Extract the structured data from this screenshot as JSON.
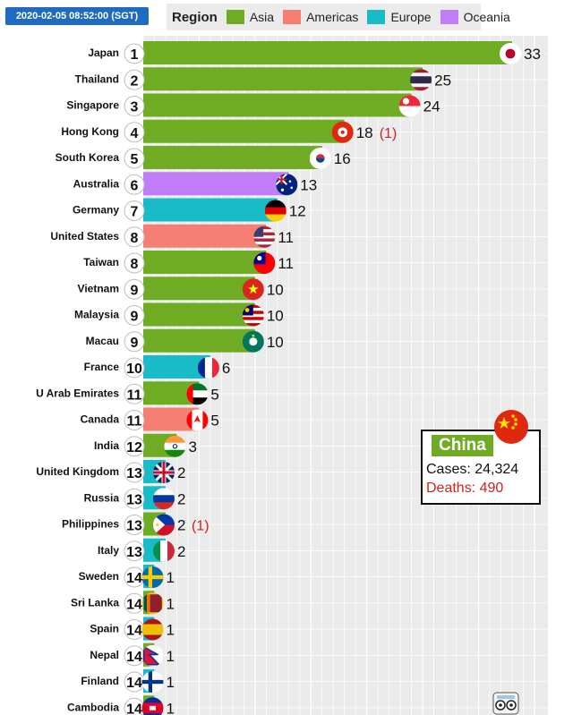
{
  "timestamp": "2020-02-05 08:52:00 (SGT)",
  "legend": {
    "title": "Region",
    "items": [
      {
        "label": "Asia",
        "color": "#6fac24"
      },
      {
        "label": "Americas",
        "color": "#f67f74"
      },
      {
        "label": "Europe",
        "color": "#18bcc6"
      },
      {
        "label": "Oceania",
        "color": "#c17cf7"
      }
    ]
  },
  "china": {
    "name": "China",
    "cases_text": "Cases: 24,324",
    "deaths_text": "Deaths: 490",
    "flag": "flag-china-icon"
  },
  "chart_data": {
    "type": "bar",
    "orientation": "horizontal",
    "xlim": [
      0,
      35
    ],
    "grid": true,
    "legend_position": "top",
    "categories": [
      "Japan",
      "Thailand",
      "Singapore",
      "Hong Kong",
      "South Korea",
      "Australia",
      "Germany",
      "United States",
      "Taiwan",
      "Vietnam",
      "Malaysia",
      "Macau",
      "France",
      "U Arab Emirates",
      "Canada",
      "India",
      "United Kingdom",
      "Russia",
      "Philippines",
      "Italy",
      "Sweden",
      "Sri Lanka",
      "Spain",
      "Nepal",
      "Finland",
      "Cambodia"
    ],
    "values": [
      33,
      25,
      24,
      18,
      16,
      13,
      12,
      11,
      11,
      10,
      10,
      10,
      6,
      5,
      5,
      3,
      2,
      2,
      2,
      2,
      1,
      1,
      1,
      1,
      1,
      1
    ],
    "ranks": [
      1,
      2,
      3,
      4,
      5,
      6,
      7,
      8,
      8,
      9,
      9,
      9,
      10,
      11,
      11,
      12,
      13,
      13,
      13,
      13,
      14,
      14,
      14,
      14,
      14,
      14
    ],
    "regions": [
      "Asia",
      "Asia",
      "Asia",
      "Asia",
      "Asia",
      "Oceania",
      "Europe",
      "Americas",
      "Asia",
      "Asia",
      "Asia",
      "Asia",
      "Europe",
      "Asia",
      "Americas",
      "Asia",
      "Europe",
      "Europe",
      "Asia",
      "Europe",
      "Europe",
      "Asia",
      "Europe",
      "Asia",
      "Europe",
      "Asia"
    ],
    "deaths_labels": [
      "",
      "",
      "",
      "(1)",
      "",
      "",
      "",
      "",
      "",
      "",
      "",
      "",
      "",
      "",
      "",
      "",
      "",
      "",
      "(1)",
      "",
      "",
      "",
      "",
      "",
      "",
      ""
    ],
    "flags": [
      "flag-japan-icon",
      "flag-thailand-icon",
      "flag-singapore-icon",
      "flag-hong-kong-icon",
      "flag-south-korea-icon",
      "flag-australia-icon",
      "flag-germany-icon",
      "flag-united-states-icon",
      "flag-taiwan-icon",
      "flag-vietnam-icon",
      "flag-malaysia-icon",
      "flag-macau-icon",
      "flag-france-icon",
      "flag-uae-icon",
      "flag-canada-icon",
      "flag-india-icon",
      "flag-united-kingdom-icon",
      "flag-russia-icon",
      "flag-philippines-icon",
      "flag-italy-icon",
      "flag-sweden-icon",
      "flag-sri-lanka-icon",
      "flag-spain-icon",
      "flag-nepal-icon",
      "flag-finland-icon",
      "flag-cambodia-icon"
    ]
  }
}
